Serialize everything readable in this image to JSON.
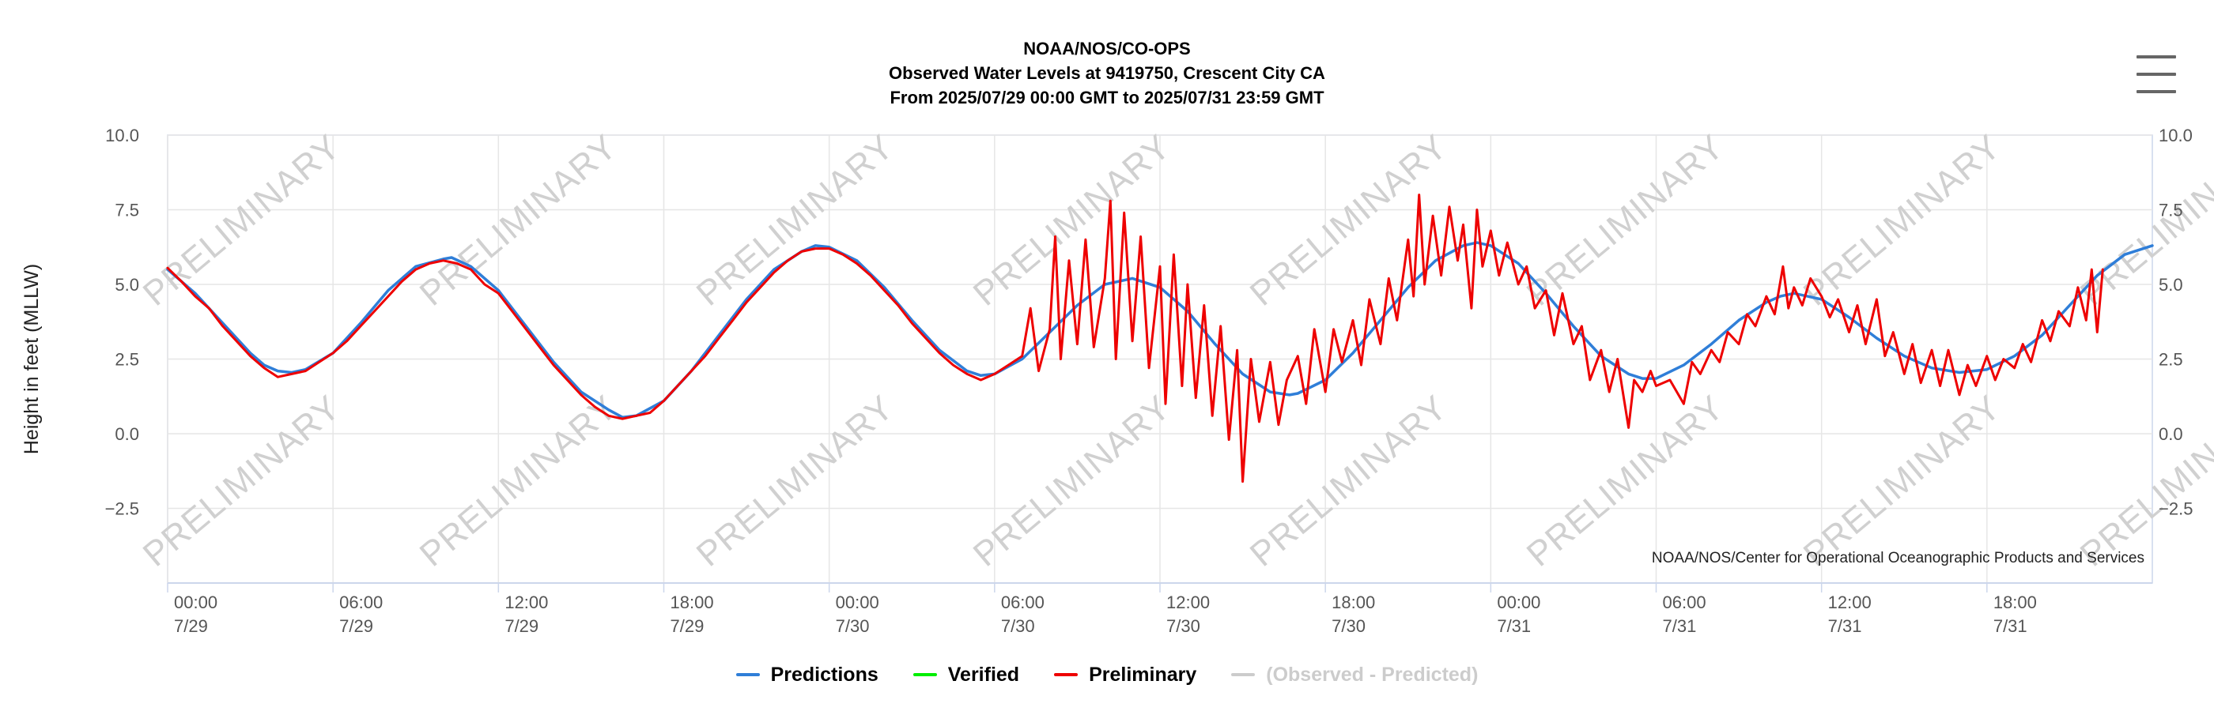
{
  "header": {
    "line1": "NOAA/NOS/CO-OPS",
    "line2": "Observed Water Levels at 9419750, Crescent City CA",
    "line3": "From 2025/07/29 00:00 GMT to 2025/07/31 23:59 GMT"
  },
  "watermark_text": "PRELIMINARY",
  "credits": "NOAA/NOS/Center for Operational Oceanographic Products and Services",
  "colors": {
    "predictions": "#2f7ed8",
    "verified": "#00ee00",
    "preliminary": "#ee0000",
    "residual": "#cccccc"
  },
  "menu": {
    "icon": "hamburger-menu-icon"
  },
  "legend": [
    {
      "label": "Predictions",
      "color": "#2f7ed8",
      "visible": true
    },
    {
      "label": "Verified",
      "color": "#00ee00",
      "visible": true
    },
    {
      "label": "Preliminary",
      "color": "#ee0000",
      "visible": true
    },
    {
      "label": "(Observed - Predicted)",
      "color": "#cccccc",
      "visible": false
    }
  ],
  "chart_data": {
    "type": "line",
    "ylabel": "Height in feet (MLLW)",
    "ylim": [
      -5,
      10
    ],
    "yticks": [
      {
        "value": 10,
        "label": "10.0"
      },
      {
        "value": 7.5,
        "label": "7.5"
      },
      {
        "value": 5,
        "label": "5.0"
      },
      {
        "value": 2.5,
        "label": "2.5"
      },
      {
        "value": 0,
        "label": "0.0"
      },
      {
        "value": -2.5,
        "label": "−2.5"
      }
    ],
    "x_unit": "hours from 2025/07/29 00:00 GMT",
    "xlim": [
      0,
      72
    ],
    "xticks": [
      {
        "x": 0,
        "time": "00:00",
        "date": "7/29"
      },
      {
        "x": 6,
        "time": "06:00",
        "date": "7/29"
      },
      {
        "x": 12,
        "time": "12:00",
        "date": "7/29"
      },
      {
        "x": 18,
        "time": "18:00",
        "date": "7/29"
      },
      {
        "x": 24,
        "time": "00:00",
        "date": "7/30"
      },
      {
        "x": 30,
        "time": "06:00",
        "date": "7/30"
      },
      {
        "x": 36,
        "time": "12:00",
        "date": "7/30"
      },
      {
        "x": 42,
        "time": "18:00",
        "date": "7/30"
      },
      {
        "x": 48,
        "time": "00:00",
        "date": "7/31"
      },
      {
        "x": 54,
        "time": "06:00",
        "date": "7/31"
      },
      {
        "x": 60,
        "time": "12:00",
        "date": "7/31"
      },
      {
        "x": 66,
        "time": "18:00",
        "date": "7/31"
      }
    ],
    "grid": true,
    "legend_position": "bottom",
    "series": [
      {
        "name": "Predictions",
        "color": "#2f7ed8",
        "points": [
          [
            0,
            5.5
          ],
          [
            1,
            4.7
          ],
          [
            2,
            3.7
          ],
          [
            3,
            2.7
          ],
          [
            3.5,
            2.3
          ],
          [
            4,
            2.1
          ],
          [
            4.5,
            2.05
          ],
          [
            5,
            2.15
          ],
          [
            6,
            2.7
          ],
          [
            7,
            3.7
          ],
          [
            8,
            4.8
          ],
          [
            9,
            5.6
          ],
          [
            10,
            5.85
          ],
          [
            10.3,
            5.9
          ],
          [
            11,
            5.6
          ],
          [
            12,
            4.8
          ],
          [
            13,
            3.6
          ],
          [
            14,
            2.4
          ],
          [
            15,
            1.4
          ],
          [
            16,
            0.8
          ],
          [
            16.5,
            0.55
          ],
          [
            17,
            0.6
          ],
          [
            18,
            1.1
          ],
          [
            19,
            2.1
          ],
          [
            20,
            3.3
          ],
          [
            21,
            4.5
          ],
          [
            22,
            5.5
          ],
          [
            23,
            6.1
          ],
          [
            23.5,
            6.3
          ],
          [
            24,
            6.25
          ],
          [
            25,
            5.8
          ],
          [
            26,
            4.9
          ],
          [
            27,
            3.8
          ],
          [
            28,
            2.8
          ],
          [
            29,
            2.1
          ],
          [
            29.5,
            1.95
          ],
          [
            30,
            2.0
          ],
          [
            31,
            2.5
          ],
          [
            32,
            3.4
          ],
          [
            33,
            4.3
          ],
          [
            34,
            5.0
          ],
          [
            35,
            5.2
          ],
          [
            36,
            4.9
          ],
          [
            37,
            4.1
          ],
          [
            38,
            3.0
          ],
          [
            39,
            2.0
          ],
          [
            40,
            1.4
          ],
          [
            40.7,
            1.3
          ],
          [
            41,
            1.35
          ],
          [
            42,
            1.8
          ],
          [
            43,
            2.7
          ],
          [
            44,
            3.8
          ],
          [
            45,
            4.9
          ],
          [
            46,
            5.8
          ],
          [
            47,
            6.3
          ],
          [
            47.5,
            6.4
          ],
          [
            48,
            6.3
          ],
          [
            49,
            5.7
          ],
          [
            50,
            4.7
          ],
          [
            51,
            3.6
          ],
          [
            52,
            2.6
          ],
          [
            53,
            2.0
          ],
          [
            53.5,
            1.85
          ],
          [
            54,
            1.85
          ],
          [
            55,
            2.3
          ],
          [
            56,
            3.0
          ],
          [
            57,
            3.8
          ],
          [
            58,
            4.4
          ],
          [
            58.5,
            4.6
          ],
          [
            59,
            4.7
          ],
          [
            60,
            4.5
          ],
          [
            61,
            3.9
          ],
          [
            62,
            3.2
          ],
          [
            63,
            2.6
          ],
          [
            64,
            2.2
          ],
          [
            65,
            2.05
          ],
          [
            66,
            2.15
          ],
          [
            67,
            2.6
          ],
          [
            68,
            3.3
          ],
          [
            69,
            4.3
          ],
          [
            70,
            5.3
          ],
          [
            71,
            6.0
          ],
          [
            72,
            6.3
          ]
        ]
      },
      {
        "name": "Verified",
        "color": "#00ee00",
        "points": []
      },
      {
        "name": "Preliminary",
        "color": "#ee0000",
        "points": [
          [
            0,
            5.55
          ],
          [
            0.5,
            5.1
          ],
          [
            1,
            4.6
          ],
          [
            1.5,
            4.2
          ],
          [
            2,
            3.6
          ],
          [
            2.5,
            3.1
          ],
          [
            3,
            2.6
          ],
          [
            3.5,
            2.2
          ],
          [
            4,
            1.9
          ],
          [
            4.5,
            2.0
          ],
          [
            5,
            2.1
          ],
          [
            5.5,
            2.4
          ],
          [
            6,
            2.7
          ],
          [
            6.5,
            3.1
          ],
          [
            7,
            3.6
          ],
          [
            7.5,
            4.1
          ],
          [
            8,
            4.6
          ],
          [
            8.5,
            5.1
          ],
          [
            9,
            5.5
          ],
          [
            9.5,
            5.7
          ],
          [
            10,
            5.8
          ],
          [
            10.5,
            5.7
          ],
          [
            11,
            5.5
          ],
          [
            11.5,
            5.0
          ],
          [
            12,
            4.7
          ],
          [
            12.5,
            4.1
          ],
          [
            13,
            3.5
          ],
          [
            13.5,
            2.9
          ],
          [
            14,
            2.3
          ],
          [
            14.5,
            1.8
          ],
          [
            15,
            1.3
          ],
          [
            15.5,
            0.9
          ],
          [
            16,
            0.6
          ],
          [
            16.5,
            0.5
          ],
          [
            17,
            0.6
          ],
          [
            17.5,
            0.7
          ],
          [
            18,
            1.1
          ],
          [
            18.5,
            1.6
          ],
          [
            19,
            2.1
          ],
          [
            19.5,
            2.6
          ],
          [
            20,
            3.2
          ],
          [
            20.5,
            3.8
          ],
          [
            21,
            4.4
          ],
          [
            21.5,
            4.9
          ],
          [
            22,
            5.4
          ],
          [
            22.5,
            5.8
          ],
          [
            23,
            6.1
          ],
          [
            23.5,
            6.2
          ],
          [
            24,
            6.2
          ],
          [
            24.5,
            6.0
          ],
          [
            25,
            5.7
          ],
          [
            25.5,
            5.3
          ],
          [
            26,
            4.8
          ],
          [
            26.5,
            4.3
          ],
          [
            27,
            3.7
          ],
          [
            27.5,
            3.2
          ],
          [
            28,
            2.7
          ],
          [
            28.5,
            2.3
          ],
          [
            29,
            2.0
          ],
          [
            29.5,
            1.8
          ],
          [
            30,
            2.0
          ],
          [
            30.5,
            2.3
          ],
          [
            31,
            2.6
          ],
          [
            31.3,
            4.2
          ],
          [
            31.6,
            2.1
          ],
          [
            32,
            3.5
          ],
          [
            32.2,
            6.6
          ],
          [
            32.4,
            2.5
          ],
          [
            32.7,
            5.8
          ],
          [
            33,
            3.0
          ],
          [
            33.3,
            6.5
          ],
          [
            33.6,
            2.9
          ],
          [
            34,
            5.2
          ],
          [
            34.2,
            7.8
          ],
          [
            34.4,
            2.5
          ],
          [
            34.7,
            7.4
          ],
          [
            35,
            3.1
          ],
          [
            35.3,
            6.6
          ],
          [
            35.6,
            2.2
          ],
          [
            36,
            5.6
          ],
          [
            36.2,
            1.0
          ],
          [
            36.5,
            6.0
          ],
          [
            36.8,
            1.6
          ],
          [
            37,
            5.0
          ],
          [
            37.3,
            1.2
          ],
          [
            37.6,
            4.3
          ],
          [
            37.9,
            0.6
          ],
          [
            38.2,
            3.6
          ],
          [
            38.5,
            -0.2
          ],
          [
            38.8,
            2.8
          ],
          [
            39,
            -1.6
          ],
          [
            39.3,
            2.5
          ],
          [
            39.6,
            0.4
          ],
          [
            40,
            2.4
          ],
          [
            40.3,
            0.3
          ],
          [
            40.6,
            1.8
          ],
          [
            41,
            2.6
          ],
          [
            41.3,
            1.0
          ],
          [
            41.6,
            3.5
          ],
          [
            42,
            1.4
          ],
          [
            42.3,
            3.5
          ],
          [
            42.6,
            2.4
          ],
          [
            43,
            3.8
          ],
          [
            43.3,
            2.3
          ],
          [
            43.6,
            4.5
          ],
          [
            44,
            3.0
          ],
          [
            44.3,
            5.2
          ],
          [
            44.6,
            3.8
          ],
          [
            45,
            6.5
          ],
          [
            45.2,
            4.6
          ],
          [
            45.4,
            8.0
          ],
          [
            45.6,
            5.0
          ],
          [
            45.9,
            7.3
          ],
          [
            46.2,
            5.3
          ],
          [
            46.5,
            7.6
          ],
          [
            46.8,
            5.8
          ],
          [
            47,
            7.0
          ],
          [
            47.3,
            4.2
          ],
          [
            47.5,
            7.5
          ],
          [
            47.7,
            5.6
          ],
          [
            48,
            6.8
          ],
          [
            48.3,
            5.3
          ],
          [
            48.6,
            6.4
          ],
          [
            49,
            5.0
          ],
          [
            49.3,
            5.6
          ],
          [
            49.6,
            4.2
          ],
          [
            50,
            4.8
          ],
          [
            50.3,
            3.3
          ],
          [
            50.6,
            4.7
          ],
          [
            51,
            3.0
          ],
          [
            51.3,
            3.6
          ],
          [
            51.6,
            1.8
          ],
          [
            52,
            2.8
          ],
          [
            52.3,
            1.4
          ],
          [
            52.6,
            2.5
          ],
          [
            53,
            0.2
          ],
          [
            53.2,
            1.8
          ],
          [
            53.5,
            1.4
          ],
          [
            53.8,
            2.1
          ],
          [
            54,
            1.6
          ],
          [
            54.5,
            1.8
          ],
          [
            55,
            1.0
          ],
          [
            55.3,
            2.4
          ],
          [
            55.6,
            2.0
          ],
          [
            56,
            2.8
          ],
          [
            56.3,
            2.4
          ],
          [
            56.6,
            3.4
          ],
          [
            57,
            3.0
          ],
          [
            57.3,
            4.0
          ],
          [
            57.6,
            3.6
          ],
          [
            58,
            4.6
          ],
          [
            58.3,
            4.0
          ],
          [
            58.6,
            5.6
          ],
          [
            58.8,
            4.2
          ],
          [
            59,
            4.9
          ],
          [
            59.3,
            4.3
          ],
          [
            59.6,
            5.2
          ],
          [
            60,
            4.6
          ],
          [
            60.3,
            3.9
          ],
          [
            60.6,
            4.5
          ],
          [
            61,
            3.4
          ],
          [
            61.3,
            4.3
          ],
          [
            61.6,
            3.0
          ],
          [
            62,
            4.5
          ],
          [
            62.3,
            2.6
          ],
          [
            62.6,
            3.4
          ],
          [
            63,
            2.0
          ],
          [
            63.3,
            3.0
          ],
          [
            63.6,
            1.7
          ],
          [
            64,
            2.8
          ],
          [
            64.3,
            1.6
          ],
          [
            64.6,
            2.8
          ],
          [
            65,
            1.3
          ],
          [
            65.3,
            2.3
          ],
          [
            65.6,
            1.6
          ],
          [
            66,
            2.6
          ],
          [
            66.3,
            1.8
          ],
          [
            66.6,
            2.5
          ],
          [
            67,
            2.2
          ],
          [
            67.3,
            3.0
          ],
          [
            67.6,
            2.4
          ],
          [
            68,
            3.8
          ],
          [
            68.3,
            3.1
          ],
          [
            68.6,
            4.1
          ],
          [
            69,
            3.6
          ],
          [
            69.3,
            4.9
          ],
          [
            69.6,
            3.8
          ],
          [
            69.8,
            5.5
          ],
          [
            70,
            3.4
          ],
          [
            70.2,
            5.5
          ]
        ]
      }
    ]
  }
}
